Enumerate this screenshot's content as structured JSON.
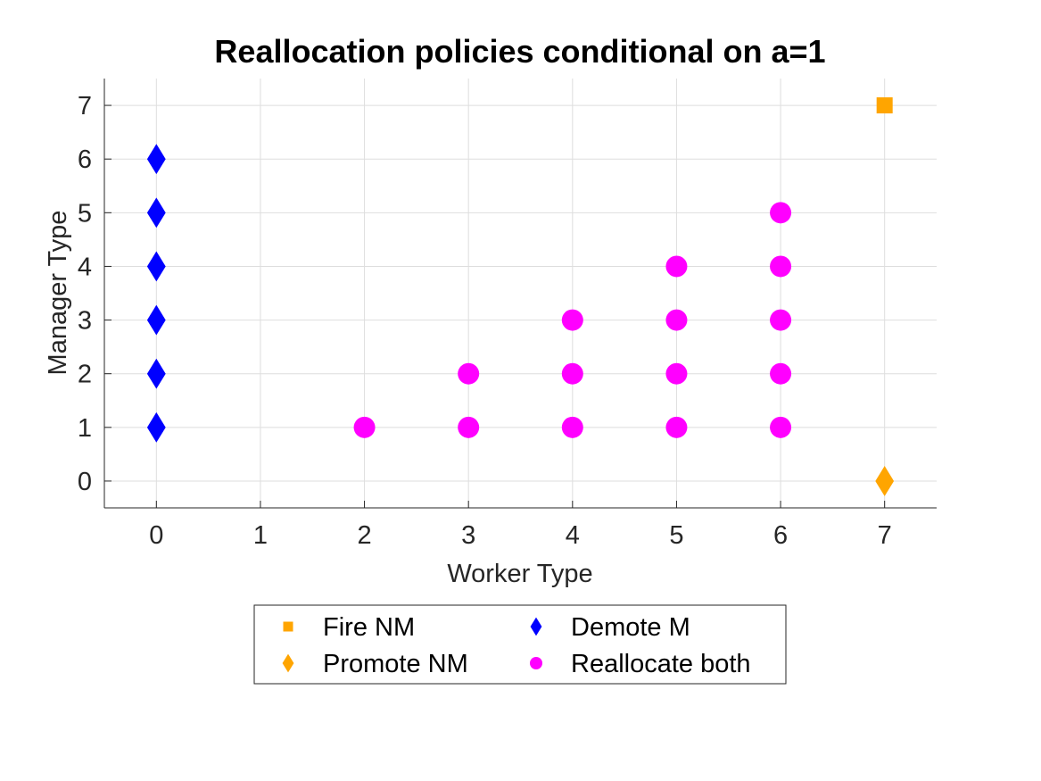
{
  "chart_data": {
    "type": "scatter",
    "title": "Reallocation policies conditional on a=1",
    "xlabel": "Worker Type",
    "ylabel": "Manager Type",
    "xlim": [
      -0.5,
      7.5
    ],
    "ylim": [
      -0.5,
      7.5
    ],
    "xticks": [
      "0",
      "1",
      "2",
      "3",
      "4",
      "5",
      "6",
      "7"
    ],
    "yticks": [
      "0",
      "1",
      "2",
      "3",
      "4",
      "5",
      "6",
      "7"
    ],
    "grid": true,
    "legend_placement": "bottom, outside plot, 2 columns",
    "series": [
      {
        "name": "Fire NM",
        "marker": "square",
        "color": "#FFA500",
        "points": [
          [
            7,
            7
          ]
        ]
      },
      {
        "name": "Promote NM",
        "marker": "diamond",
        "color": "#FFA500",
        "points": [
          [
            7,
            0
          ]
        ]
      },
      {
        "name": "Demote M",
        "marker": "diamond",
        "color": "#0000FF",
        "points": [
          [
            0,
            1
          ],
          [
            0,
            2
          ],
          [
            0,
            3
          ],
          [
            0,
            4
          ],
          [
            0,
            5
          ],
          [
            0,
            6
          ]
        ]
      },
      {
        "name": "Reallocate both",
        "marker": "circle",
        "color": "#FF00FF",
        "points": [
          [
            2,
            1
          ],
          [
            3,
            1
          ],
          [
            3,
            2
          ],
          [
            4,
            1
          ],
          [
            4,
            2
          ],
          [
            4,
            3
          ],
          [
            5,
            1
          ],
          [
            5,
            2
          ],
          [
            5,
            3
          ],
          [
            5,
            4
          ],
          [
            6,
            1
          ],
          [
            6,
            2
          ],
          [
            6,
            3
          ],
          [
            6,
            4
          ],
          [
            6,
            5
          ]
        ]
      }
    ]
  }
}
